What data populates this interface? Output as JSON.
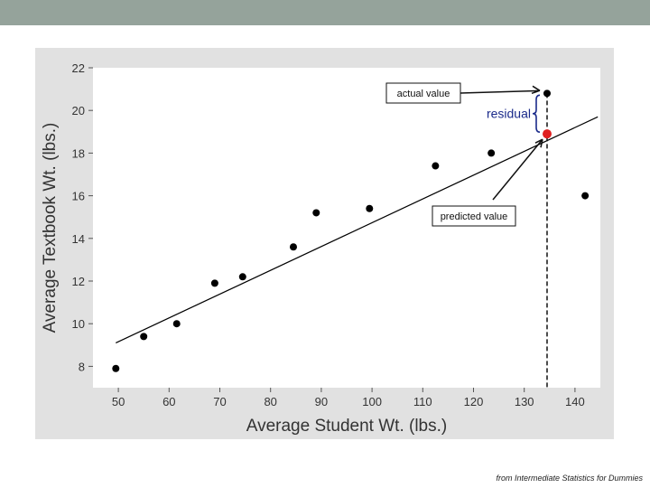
{
  "slide": {
    "credit": "from Intermediate Statistics for Dummies"
  },
  "chart_data": {
    "type": "scatter",
    "xlabel": "Average Student Wt. (lbs.)",
    "ylabel": "Average Textbook Wt. (lbs.)",
    "xlim": [
      45,
      145
    ],
    "ylim": [
      7,
      22
    ],
    "xticks": [
      50,
      60,
      70,
      80,
      90,
      100,
      110,
      120,
      130,
      140
    ],
    "yticks": [
      8,
      10,
      12,
      14,
      16,
      18,
      20,
      22
    ],
    "grid": false,
    "points": [
      {
        "x": 49.5,
        "y": 7.9
      },
      {
        "x": 55,
        "y": 9.4
      },
      {
        "x": 61.5,
        "y": 10.0
      },
      {
        "x": 69,
        "y": 11.9
      },
      {
        "x": 74.5,
        "y": 12.2
      },
      {
        "x": 84.5,
        "y": 13.6
      },
      {
        "x": 89,
        "y": 15.2
      },
      {
        "x": 99.5,
        "y": 15.4
      },
      {
        "x": 112.5,
        "y": 17.4
      },
      {
        "x": 123.5,
        "y": 18.0
      },
      {
        "x": 134.5,
        "y": 20.8
      },
      {
        "x": 142,
        "y": 16.0
      }
    ],
    "regression_line": {
      "x": [
        49.5,
        144.5
      ],
      "y": [
        9.1,
        19.7
      ]
    },
    "predicted_point": {
      "x": 134.5,
      "y": 18.9,
      "color": "#e02020"
    },
    "annotations": {
      "actual": "actual value",
      "predicted": "predicted value",
      "residual": "residual"
    },
    "colors": {
      "points": "#000000",
      "line": "#000000",
      "residual": "#1a2a8a",
      "plot_bg": "#ffffff",
      "frame_bg": "#e1e1e1"
    }
  }
}
